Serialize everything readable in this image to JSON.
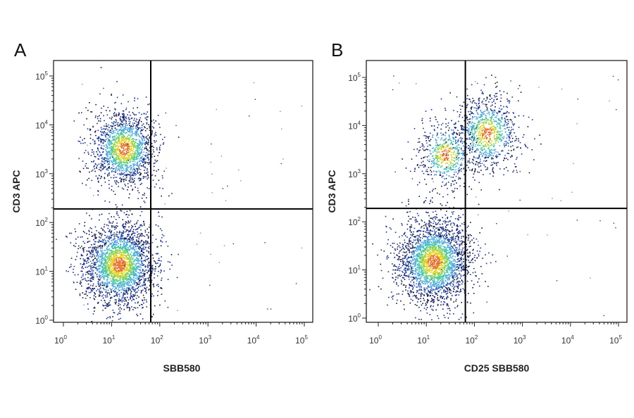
{
  "chart_data": [
    {
      "type": "scatter",
      "panel_label": "A",
      "xlabel": "SBB580",
      "ylabel": "CD3 APC",
      "x_scale": "log",
      "y_scale": "log",
      "xlim": [
        1,
        100000
      ],
      "ylim": [
        1,
        100000
      ],
      "x_tick_labels": [
        "10^0",
        "10^1",
        "10^2",
        "10^3",
        "10^4",
        "10^5"
      ],
      "y_tick_labels": [
        "10^0",
        "10^1",
        "10^2",
        "10^3",
        "10^4",
        "10^5"
      ],
      "gate": {
        "x": 65,
        "y": 190
      },
      "colormap": [
        "#1a2f9e",
        "#2f64d6",
        "#4aa7e0",
        "#44c6a8",
        "#8fd34a",
        "#e5d21f",
        "#e8712a"
      ],
      "populations": [
        {
          "x": 14,
          "y": 14,
          "count": 2600
        },
        {
          "x": 18,
          "y": 3300,
          "count": 1700
        }
      ]
    },
    {
      "type": "scatter",
      "panel_label": "B",
      "xlabel": "CD25 SBB580",
      "ylabel": "CD3 APC",
      "x_scale": "log",
      "y_scale": "log",
      "xlim": [
        1,
        100000
      ],
      "ylim": [
        1,
        100000
      ],
      "x_tick_labels": [
        "10^0",
        "10^1",
        "10^2",
        "10^3",
        "10^4",
        "10^5"
      ],
      "y_tick_labels": [
        "10^0",
        "10^1",
        "10^2",
        "10^3",
        "10^4",
        "10^5"
      ],
      "gate": {
        "x": 65,
        "y": 190
      },
      "colormap": [
        "#1a2f9e",
        "#2f64d6",
        "#4aa7e0",
        "#44c6a8",
        "#8fd34a",
        "#e5d21f",
        "#e8712a"
      ],
      "populations": [
        {
          "x": 14,
          "y": 15,
          "count": 2600
        },
        {
          "x": 180,
          "y": 7000,
          "count": 1000
        },
        {
          "x": 25,
          "y": 2500,
          "count": 600
        }
      ]
    }
  ]
}
